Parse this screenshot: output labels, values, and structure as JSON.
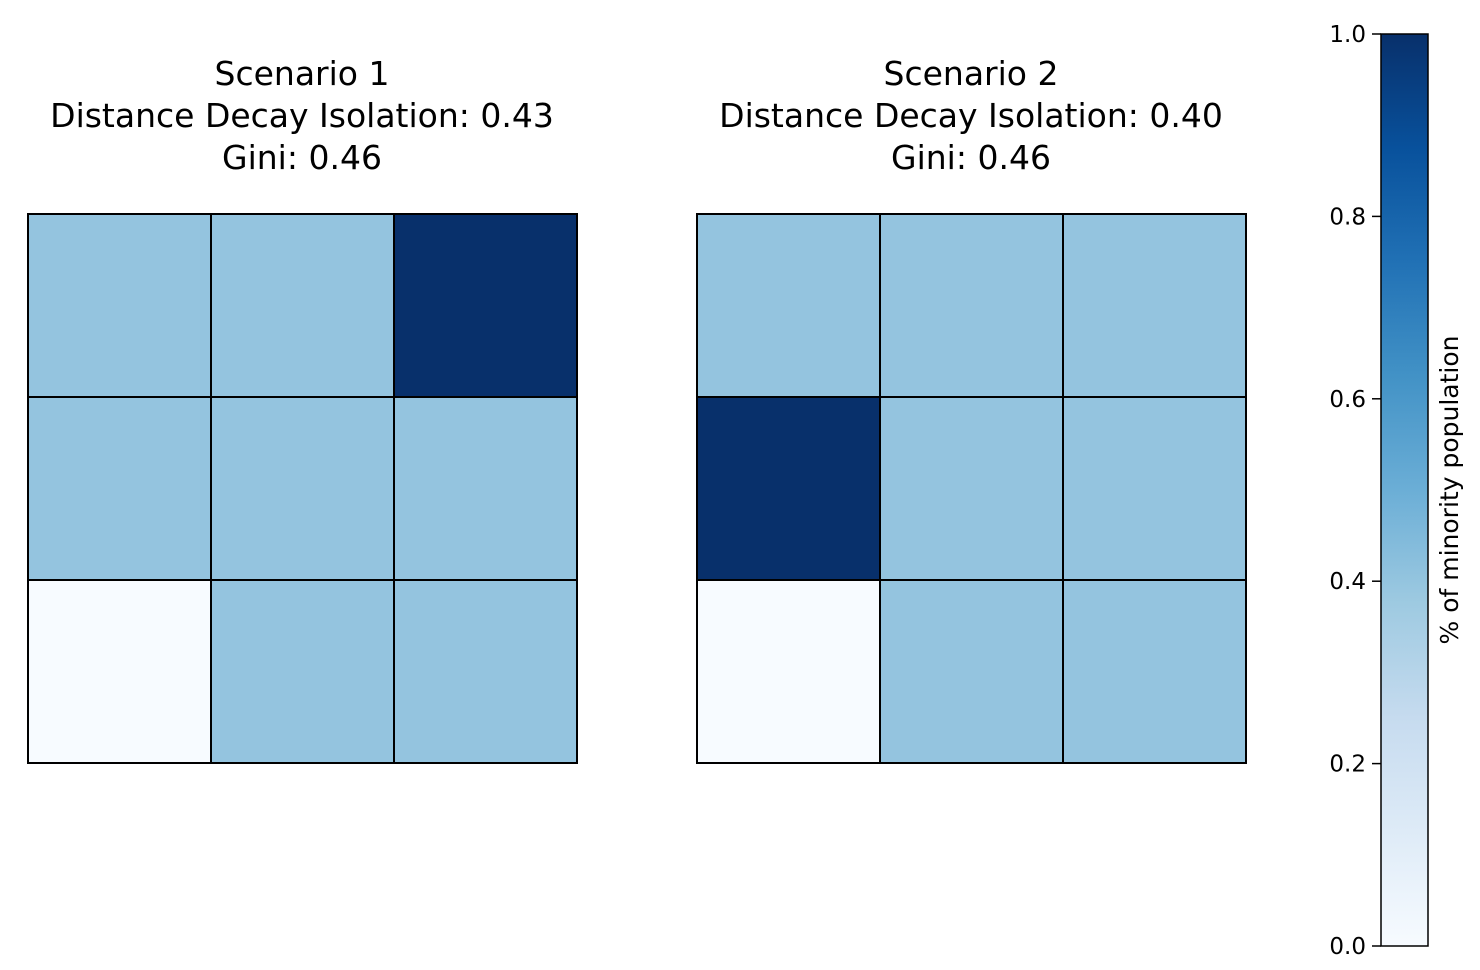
{
  "chart_data": {
    "type": "heatmap",
    "colormap": "Blues",
    "grid": true,
    "panels": [
      {
        "title_lines": [
          "Scenario 1",
          "Distance Decay Isolation: 0.43",
          "Gini: 0.46"
        ],
        "values": [
          [
            0.4,
            0.4,
            1.0
          ],
          [
            0.4,
            0.4,
            0.4
          ],
          [
            0.0,
            0.4,
            0.4
          ]
        ]
      },
      {
        "title_lines": [
          "Scenario 2",
          "Distance Decay Isolation: 0.40",
          "Gini: 0.46"
        ],
        "values": [
          [
            0.4,
            0.4,
            0.4
          ],
          [
            1.0,
            0.4,
            0.4
          ],
          [
            0.0,
            0.4,
            0.4
          ]
        ]
      }
    ],
    "colorbar": {
      "label": "% of minority population",
      "range": [
        0.0,
        1.0
      ],
      "ticks": [
        "0.0",
        "0.2",
        "0.4",
        "0.6",
        "0.8",
        "1.0"
      ],
      "placement": "right"
    }
  }
}
